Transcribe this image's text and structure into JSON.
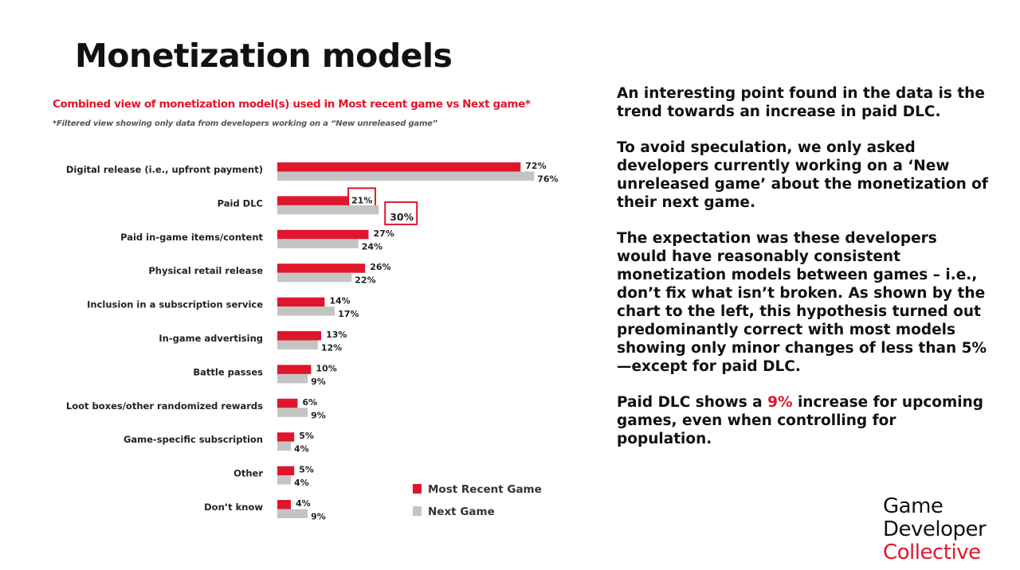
{
  "slide": {
    "title": "Monetization models",
    "subtitle": "Combined view of monetization model(s) used in Most recent game vs Next game*",
    "note": "*Filtered view showing only data from developers working on a “New unreleased game”",
    "paragraphs": [
      "An interesting point found in the data is the trend towards an increase in paid DLC.",
      "To avoid speculation, we only asked developers currently working on a ‘New unreleased game’ about the monetization of their next game.",
      "The expectation was these developers would have reasonably consistent monetization models between games – i.e., don’t fix what isn’t broken. As shown by the chart to the left, this hypothesis turned out predominantly correct with most models showing only minor changes of less than 5%—except for paid DLC."
    ],
    "final_paragraph": {
      "before": "Paid DLC shows a ",
      "highlight": "9%",
      "after": " increase for upcoming games, even when controlling for population."
    },
    "logo": {
      "line1": "Game",
      "line2": "Developer",
      "line3": "Collective"
    }
  },
  "chart_data": {
    "type": "bar",
    "orientation": "horizontal",
    "categories": [
      "Digital release (i.e., upfront payment)",
      "Paid DLC",
      "Paid in-game items/content",
      "Physical retail release",
      "Inclusion in a subscription service",
      "In-game advertising",
      "Battle passes",
      "Loot boxes/other randomized rewards",
      "Game-specific subscription",
      "Other",
      "Don’t know"
    ],
    "series": [
      {
        "name": "Most Recent Game",
        "color": "#e0162b",
        "values": [
          72,
          21,
          27,
          26,
          14,
          13,
          10,
          6,
          5,
          5,
          4
        ]
      },
      {
        "name": "Next Game",
        "color": "#c4c4c4",
        "values": [
          76,
          30,
          24,
          22,
          17,
          12,
          9,
          9,
          4,
          4,
          9
        ]
      }
    ],
    "unit": "%",
    "highlighted_category": "Paid DLC",
    "legend_position": "bottom-right",
    "grid": false
  }
}
